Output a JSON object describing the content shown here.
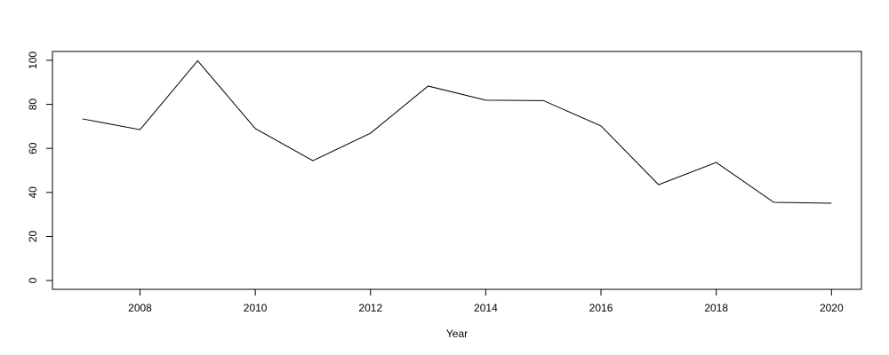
{
  "chart_data": {
    "type": "line",
    "x_label": "Year",
    "x": [
      2007,
      2008,
      2009,
      2010,
      2011,
      2012,
      2013,
      2014,
      2015,
      2016,
      2017,
      2018,
      2019,
      2020
    ],
    "series": [
      {
        "color": "#000000",
        "values": [
          73.4,
          68.5,
          99.8,
          69.0,
          54.4,
          66.9,
          88.3,
          81.9,
          81.7,
          70.2,
          43.5,
          53.6,
          35.5,
          35.1
        ]
      }
    ],
    "xlim": [
      2006.48,
      2020.52
    ],
    "ylim": [
      -4,
      104
    ],
    "xticks": [
      2008,
      2010,
      2012,
      2014,
      2016,
      2018,
      2020
    ],
    "yticks": [
      0,
      20,
      40,
      60,
      80,
      100
    ]
  }
}
